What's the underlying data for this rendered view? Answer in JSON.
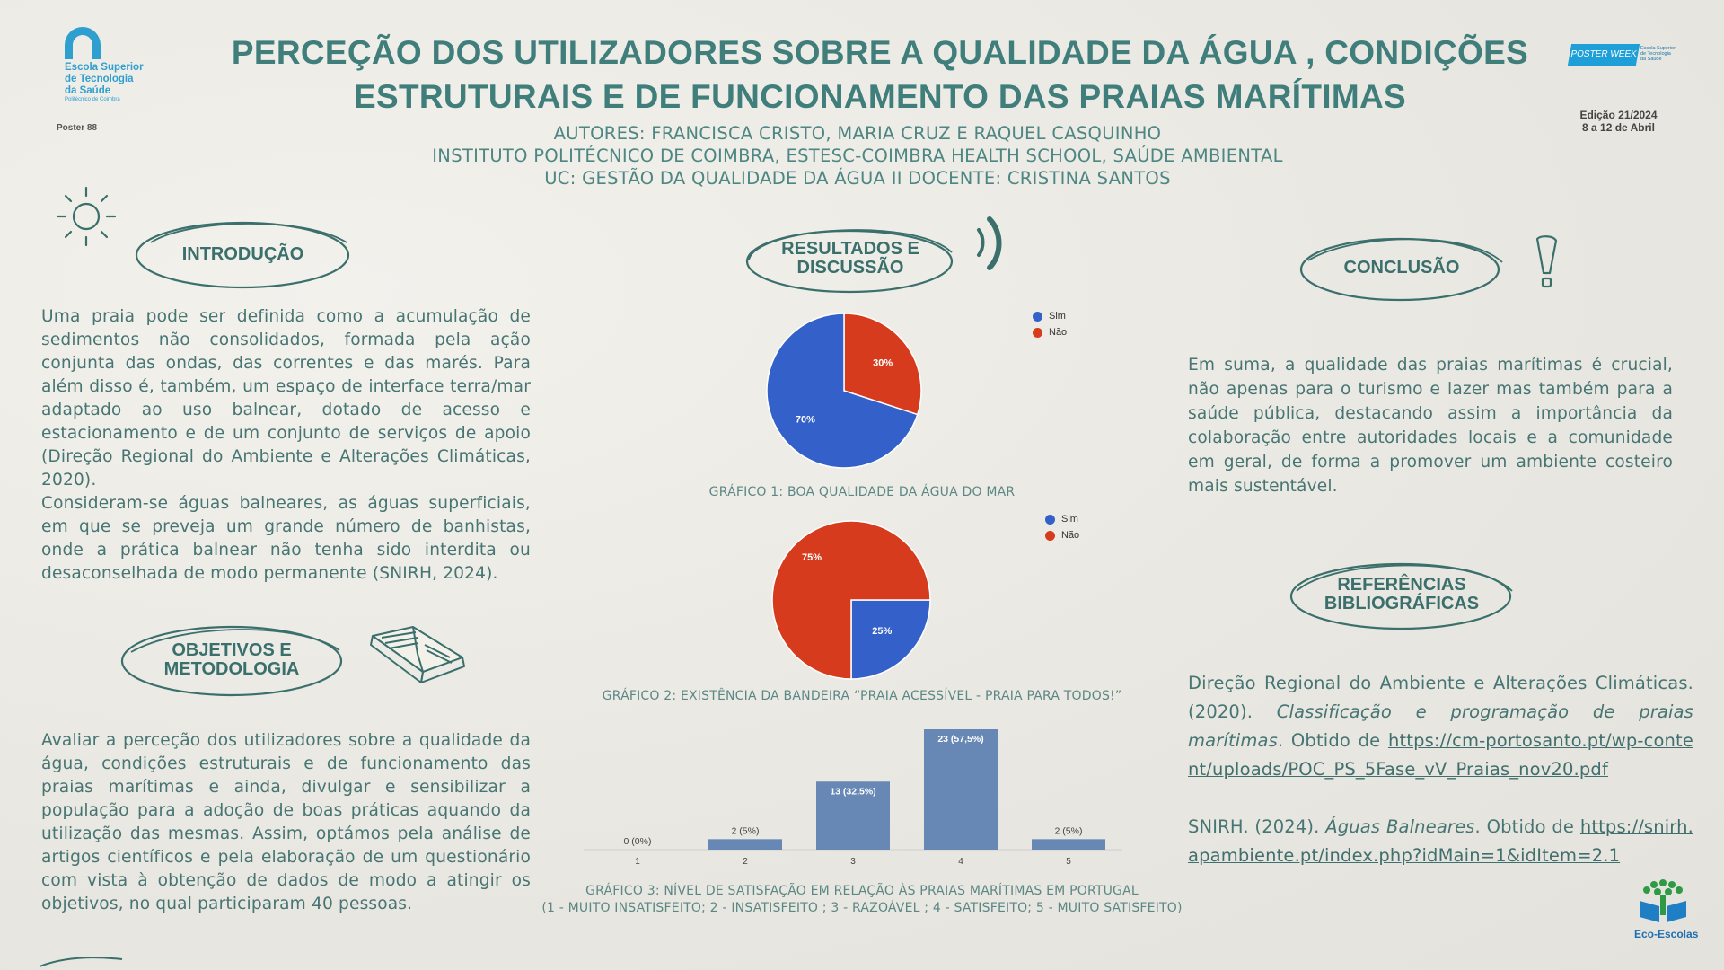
{
  "header": {
    "logo_left_text": "Escola Superior\nde Tecnologia\nda Saúde",
    "logo_left_sub": "Politécnico de Coimbra",
    "poster_number": "Poster 88",
    "title_line1": "PERCEÇÃO DOS UTILIZADORES SOBRE A  QUALIDADE DA ÁGUA , CONDIÇÕES",
    "title_line2": "ESTRUTURAIS  E DE FUNCIONAMENTO DAS PRAIAS MARÍTIMAS",
    "authors": "AUTORES: FRANCISCA CRISTO, MARIA CRUZ E RAQUEL CASQUINHO",
    "institute": "INSTITUTO POLITÉCNICO DE COIMBRA, ESTESC-COIMBRA HEALTH SCHOOL, SAÚDE AMBIENTAL",
    "uc": "UC: GESTÃO DA QUALIDADE DA ÁGUA II     DOCENTE: CRISTINA SANTOS",
    "logo_right_band": "POSTER WEEK",
    "logo_right_text": "Escola Superior\nde Tecnologia\nda Saúde",
    "edition_line1": "Edição 21/2024",
    "edition_line2": "8 a 12 de Abril"
  },
  "sections": {
    "introducao": {
      "title": "INTRODUÇÃO",
      "paragraph1": "Uma praia pode ser definida como a acumulação de sedimentos não consolidados, formada pela ação conjunta das ondas, das correntes e das marés. Para além disso é, também, um espaço de interface terra/mar adaptado ao uso balnear, dotado de acesso e estacionamento e de um conjunto de serviços de apoio (Direção Regional do Ambiente e Alterações Climáticas, 2020).",
      "paragraph2": "Consideram-se águas balneares, as águas superficiais, em que se preveja um grande número de banhistas, onde a prática balnear não tenha sido interdita ou desaconselhada de modo permanente (SNIRH, 2024)."
    },
    "objetivos": {
      "title_line1": "OBJETIVOS E",
      "title_line2": "METODOLOGIA",
      "text": "Avaliar a perceção dos utilizadores sobre a qualidade da água, condições estruturais e de funcionamento das praias marítimas e ainda, divulgar e sensibilizar a população para a adoção de boas práticas aquando da utilização das mesmas. Assim, optámos pela análise de artigos científicos e pela elaboração de um questionário com vista à obtenção de dados de modo a atingir os objetivos, no qual participaram 40 pessoas."
    },
    "resultados": {
      "title_line1": "RESULTADOS E",
      "title_line2": "DISCUSSÃO"
    },
    "conclusao": {
      "title": "CONCLUSÃO",
      "text": "Em suma, a qualidade das praias marítimas é crucial, não apenas para o turismo e lazer mas também para a saúde pública, destacando assim a importância da colaboração entre autoridades locais e a comunidade em geral, de forma a promover um ambiente costeiro mais sustentável."
    },
    "referencias": {
      "title_line1": "REFERÊNCIAS",
      "title_line2": "BIBLIOGRÁFICAS",
      "ref1_a": "Direção Regional do Ambiente e Alterações Climáticas. (2020). ",
      "ref1_title": "Classificação e programação de praias marítimas",
      "ref1_b": ". Obtido de ",
      "ref1_link": "https://cm-portosanto.pt/wp-content/uploads/POC_PS_5Fase_vV_Praias_nov20.pdf",
      "ref2_a": "SNIRH. (2024). ",
      "ref2_title": "Águas Balneares",
      "ref2_b": ". Obtido de ",
      "ref2_link": "https://snirh.apambiente.pt/index.php?idMain=1&idItem=2.1"
    }
  },
  "eco_logo_text": "Eco-Escolas",
  "colors": {
    "teal": "#3f7e7b",
    "sim_blue": "#3461c9",
    "nao_red": "#d73b1d",
    "bar_blue": "#6787b5"
  },
  "chart_data": [
    {
      "type": "pie",
      "caption": "GRÁFICO 1: BOA QUALIDADE DA ÁGUA DO MAR",
      "labels": [
        "Sim",
        "Não"
      ],
      "values": [
        70,
        30
      ],
      "value_labels": [
        "70%",
        "30%"
      ],
      "colors": [
        "#3461c9",
        "#d73b1d"
      ],
      "legend": "top-right"
    },
    {
      "type": "pie",
      "caption": "GRÁFICO 2: EXISTÊNCIA DA BANDEIRA “PRAIA ACESSÍVEL - PRAIA PARA TODOS!”",
      "labels": [
        "Sim",
        "Não"
      ],
      "values": [
        25,
        75
      ],
      "value_labels": [
        "25%",
        "75%"
      ],
      "colors": [
        "#3461c9",
        "#d73b1d"
      ],
      "legend": "top-right"
    },
    {
      "type": "bar",
      "caption_line1": "GRÁFICO 3: NÍVEL DE SATISFAÇÃO EM RELAÇÃO ÀS PRAIAS MARÍTIMAS EM PORTUGAL",
      "caption_line2": "(1 - MUITO INSATISFEITO; 2 - INSATISFEITO ; 3 - RAZOÁVEL ; 4 - SATISFEITO; 5 - MUITO SATISFEITO)",
      "categories": [
        "1",
        "2",
        "3",
        "4",
        "5"
      ],
      "values": [
        0,
        2,
        13,
        23,
        2
      ],
      "value_labels": [
        "0 (0%)",
        "2 (5%)",
        "13 (32,5%)",
        "23 (57,5%)",
        "2 (5%)"
      ],
      "ylim": [
        0,
        23
      ]
    }
  ]
}
